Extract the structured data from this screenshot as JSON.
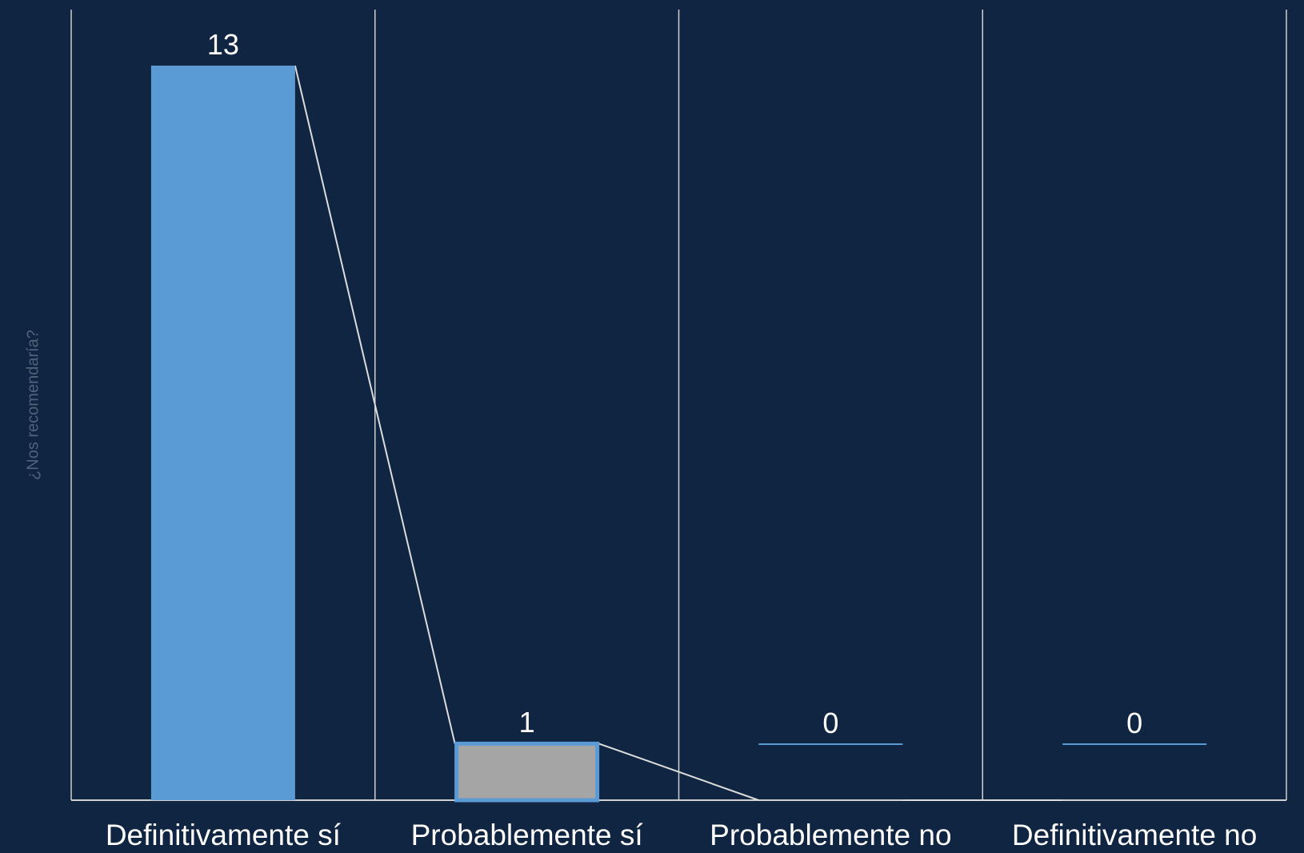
{
  "chart_data": {
    "type": "bar",
    "categories": [
      "Definitivamente sí",
      "Probablemente sí",
      "Probablemente no",
      "Definitivamente no"
    ],
    "values": [
      13,
      1,
      0,
      0
    ],
    "data_labels": [
      "13",
      "1",
      "0",
      "0"
    ],
    "ylabel": "¿Nos recomendaría?",
    "ylim": [
      0,
      13
    ],
    "grid": "vertical category separators",
    "connector_line": true,
    "colors": {
      "background": "#102541",
      "bar_primary": "#5b9bd5",
      "bar_selected": "#a5a5a5",
      "bar_selected_border": "#5b9bd5",
      "gridline": "#d0d0d0",
      "connector": "#dcdcdc",
      "text": "#ffffff",
      "axis_title": "#52627a"
    }
  }
}
